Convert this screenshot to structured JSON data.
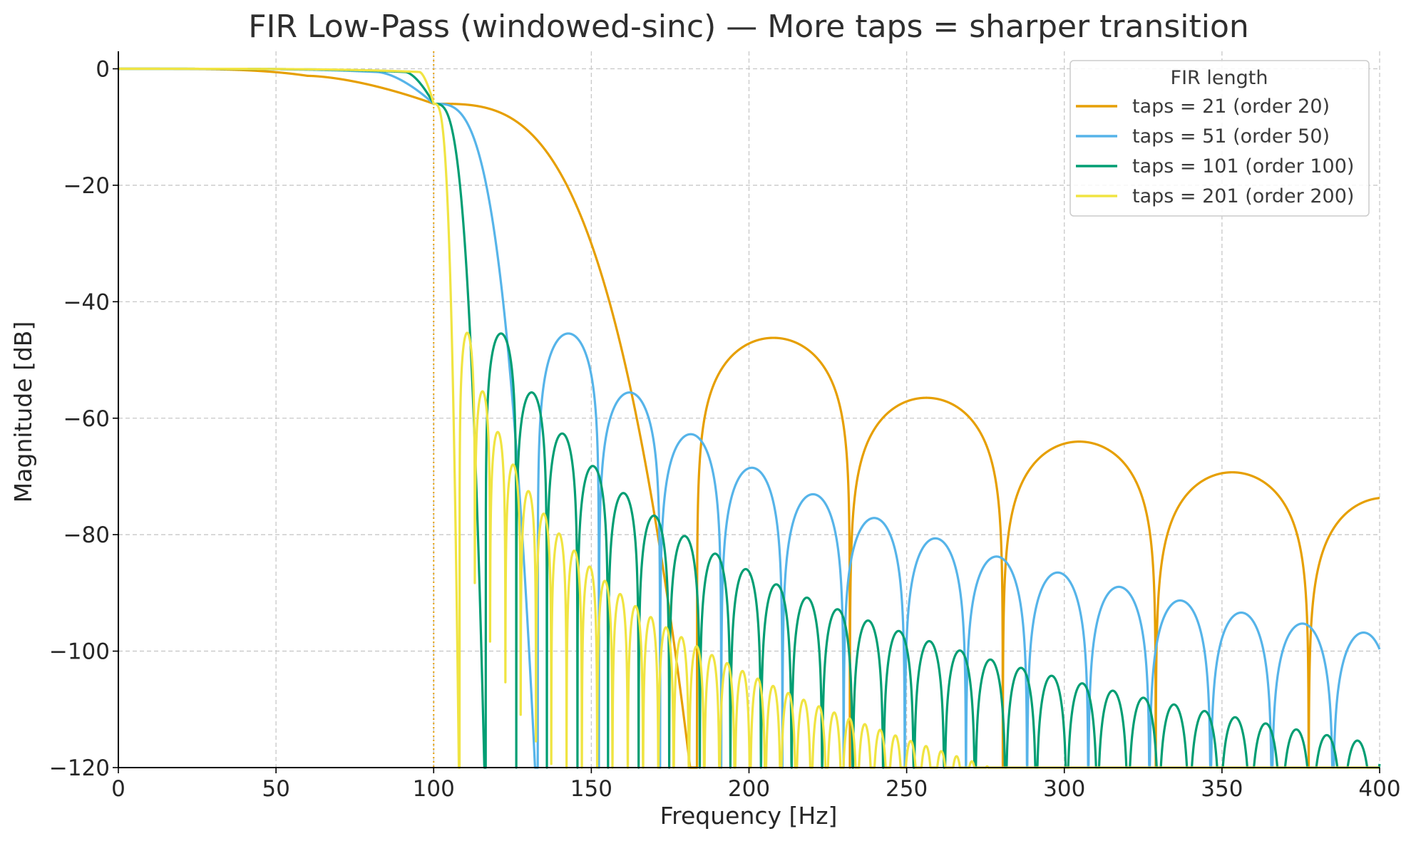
{
  "chart_data": {
    "type": "line",
    "title": "FIR Low-Pass (windowed-sinc) — More taps = sharper transition",
    "xlabel": "Frequency [Hz]",
    "ylabel": "Magnitude [dB]",
    "xlim": [
      0,
      400
    ],
    "ylim": [
      -120,
      3
    ],
    "x_ticks": [
      0,
      50,
      100,
      150,
      200,
      250,
      300,
      350,
      400
    ],
    "x_tick_labels": [
      "0",
      "50",
      "100",
      "150",
      "200",
      "250",
      "300",
      "350",
      "400"
    ],
    "y_ticks": [
      0,
      -20,
      -40,
      -60,
      -80,
      -100,
      -120
    ],
    "y_tick_labels": [
      "0",
      "−20",
      "−40",
      "−60",
      "−80",
      "−100",
      "−120"
    ],
    "grid": true,
    "cutoff_marker_x": 100,
    "cutoff_marker_color": "#E69F00",
    "legend": {
      "title": "FIR length",
      "position": "top-right"
    },
    "series": [
      {
        "name": "taps = 21 (order 20)",
        "color": "#E69F00",
        "passband_edge": 60,
        "cutoff_db_point": [
          100,
          -6
        ],
        "first_null": 183.5,
        "lobe_spacing": 48.5,
        "sidelobe_peaks": [
          [
            200,
            -44.5
          ],
          [
            250,
            -55.5
          ],
          [
            300,
            -63.5
          ],
          [
            350,
            -69
          ],
          [
            400,
            -73.5
          ]
        ]
      },
      {
        "name": "taps = 51 (order 50)",
        "color": "#56B4E9",
        "passband_edge": 82,
        "cutoff_db_point": [
          100,
          -6
        ],
        "first_null": 133,
        "lobe_spacing": 19.4,
        "sidelobe_peaks": [
          [
            140,
            -44
          ],
          [
            160,
            -54.8
          ],
          [
            180,
            -62.3
          ],
          [
            200,
            -68.3
          ],
          [
            220,
            -73
          ],
          [
            240,
            -77.2
          ],
          [
            260,
            -80.8
          ],
          [
            280,
            -84
          ],
          [
            300,
            -86.8
          ],
          [
            320,
            -89.3
          ],
          [
            340,
            -91.7
          ],
          [
            360,
            -93.8
          ],
          [
            380,
            -95.7
          ],
          [
            400,
            -97.2
          ]
        ]
      },
      {
        "name": "taps = 101 (order 100)",
        "color": "#009E73",
        "passband_edge": 91,
        "cutoff_db_point": [
          100,
          -6
        ],
        "first_null": 116.5,
        "lobe_spacing": 9.7,
        "sidelobe_peaks": [
          [
            120,
            -44
          ],
          [
            130,
            -54.8
          ],
          [
            140,
            -62.2
          ],
          [
            150,
            -68
          ],
          [
            160,
            -72.8
          ],
          [
            170,
            -76.8
          ],
          [
            180,
            -80.4
          ],
          [
            190,
            -83.5
          ],
          [
            200,
            -86.2
          ],
          [
            210,
            -88.9
          ],
          [
            220,
            -91.2
          ],
          [
            230,
            -93.2
          ],
          [
            240,
            -95.2
          ],
          [
            250,
            -97
          ],
          [
            260,
            -98.8
          ],
          [
            270,
            -100.4
          ],
          [
            280,
            -102
          ],
          [
            290,
            -103.4
          ],
          [
            300,
            -104.8
          ],
          [
            310,
            -106.1
          ],
          [
            320,
            -107.4
          ],
          [
            330,
            -108.6
          ],
          [
            340,
            -109.8
          ],
          [
            350,
            -110.9
          ],
          [
            360,
            -112
          ],
          [
            370,
            -113.1
          ],
          [
            380,
            -114.1
          ],
          [
            390,
            -115.1
          ],
          [
            400,
            -116
          ]
        ]
      },
      {
        "name": "taps = 201 (order 200)",
        "color": "#F0E442",
        "passband_edge": 95.5,
        "cutoff_db_point": [
          100,
          -6
        ],
        "first_null": 108.2,
        "lobe_spacing": 4.85,
        "sidelobe_peaks": [
          [
            110,
            -44
          ],
          [
            115,
            -54.7
          ],
          [
            120,
            -62
          ],
          [
            125,
            -67.8
          ],
          [
            130,
            -72.5
          ],
          [
            135,
            -76.5
          ],
          [
            140,
            -80
          ],
          [
            145,
            -83
          ],
          [
            150,
            -85.8
          ],
          [
            155,
            -88.3
          ],
          [
            160,
            -90.6
          ],
          [
            165,
            -92.7
          ],
          [
            170,
            -94.6
          ],
          [
            175,
            -96.4
          ],
          [
            180,
            -98.1
          ],
          [
            185,
            -99.7
          ],
          [
            190,
            -101.2
          ],
          [
            195,
            -102.6
          ],
          [
            200,
            -104
          ],
          [
            205,
            -105.3
          ],
          [
            210,
            -106.6
          ],
          [
            215,
            -107.8
          ],
          [
            220,
            -109
          ],
          [
            225,
            -110.1
          ],
          [
            230,
            -111.2
          ],
          [
            235,
            -112.2
          ],
          [
            240,
            -113.2
          ],
          [
            245,
            -114.2
          ],
          [
            250,
            -115.2
          ],
          [
            255,
            -116.1
          ],
          [
            260,
            -117
          ]
        ]
      }
    ]
  }
}
